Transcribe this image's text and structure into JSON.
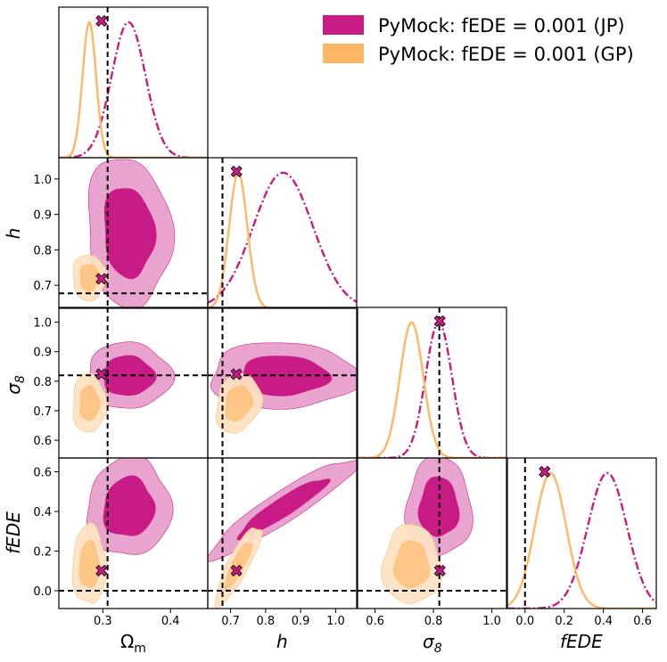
{
  "chart_data": {
    "type": "corner",
    "parameters": [
      "Ωm",
      "h",
      "σ8",
      "fEDE"
    ],
    "axis_labels": {
      "x": {
        "Om": "Ω",
        "Om_sub": "m",
        "h": "h",
        "s8": "σ",
        "s8_sub": "8",
        "fEDE": "fEDE"
      },
      "y": {
        "h": "h",
        "s8": "σ",
        "s8_sub": "8",
        "fEDE": "fEDE"
      }
    },
    "ranges": {
      "Om": [
        0.235,
        0.455
      ],
      "h": [
        0.635,
        1.06
      ],
      "s8": [
        0.54,
        1.05
      ],
      "fEDE": [
        -0.09,
        0.67
      ]
    },
    "ticks": {
      "Om": [
        "0.3",
        "0.4"
      ],
      "h": [
        "0.7",
        "0.8",
        "0.9",
        "1.0"
      ],
      "s8": [
        "0.6",
        "0.8",
        "1.0"
      ],
      "fEDE": [
        "0.0",
        "0.2",
        "0.4",
        "0.6"
      ]
    },
    "tick_values": {
      "Om": [
        0.3,
        0.4
      ],
      "h": [
        0.7,
        0.8,
        0.9,
        1.0
      ],
      "s8": [
        0.6,
        0.8,
        1.0
      ],
      "fEDE": [
        0.0,
        0.2,
        0.4,
        0.6
      ]
    },
    "y_ticks": {
      "h": [
        "0.7",
        "0.8",
        "0.9",
        "1.0"
      ],
      "s8": [
        "0.6",
        "0.7",
        "0.8",
        "0.9",
        "1.0"
      ],
      "fEDE": [
        "0.0",
        "0.2",
        "0.4",
        "0.6"
      ]
    },
    "y_tick_values": {
      "h": [
        0.7,
        0.8,
        0.9,
        1.0
      ],
      "s8": [
        0.6,
        0.7,
        0.8,
        0.9,
        1.0
      ],
      "fEDE": [
        0.0,
        0.2,
        0.4,
        0.6
      ]
    },
    "truth": {
      "Om": 0.307,
      "h": 0.677,
      "s8": 0.82,
      "fEDE": 0.0
    },
    "markers": {
      "Om": 0.298,
      "h": 0.717,
      "s8": 0.822,
      "fEDE": 0.1
    },
    "series": [
      {
        "name": "PyMock: fEDE = 0.001 (JP)",
        "color": "#c81b85",
        "color_outer": "#e7a0cd",
        "mean": {
          "Om": 0.338,
          "h": 0.85,
          "s8": 0.818,
          "fEDE": 0.42
        },
        "std": {
          "Om": 0.025,
          "h": 0.085,
          "s8": 0.045,
          "fEDE": 0.1
        },
        "corr": {
          "Om_h": -0.1,
          "Om_s8": 0.0,
          "Om_fEDE": 0.05,
          "h_s8": 0.0,
          "h_fEDE": 0.93,
          "s8_fEDE": 0.0
        }
      },
      {
        "name": "PyMock: fEDE = 0.001 (GP)",
        "color": "#ffb766",
        "color_outer": "#fde3c4",
        "mean": {
          "Om": 0.28,
          "h": 0.722,
          "s8": 0.725,
          "fEDE": 0.13
        },
        "std": {
          "Om": 0.01,
          "h": 0.026,
          "s8": 0.04,
          "fEDE": 0.08
        },
        "corr": {
          "Om_h": 0.0,
          "Om_s8": 0.0,
          "Om_fEDE": 0.0,
          "h_s8": 0.2,
          "h_fEDE": 0.85,
          "s8_fEDE": 0.0
        }
      }
    ],
    "legend": {
      "position": "top-right",
      "labels": [
        "PyMock: fEDE = 0.001 (JP)",
        "PyMock: fEDE = 0.001 (GP)"
      ]
    },
    "contour_levels": [
      "68%",
      "95%"
    ]
  }
}
